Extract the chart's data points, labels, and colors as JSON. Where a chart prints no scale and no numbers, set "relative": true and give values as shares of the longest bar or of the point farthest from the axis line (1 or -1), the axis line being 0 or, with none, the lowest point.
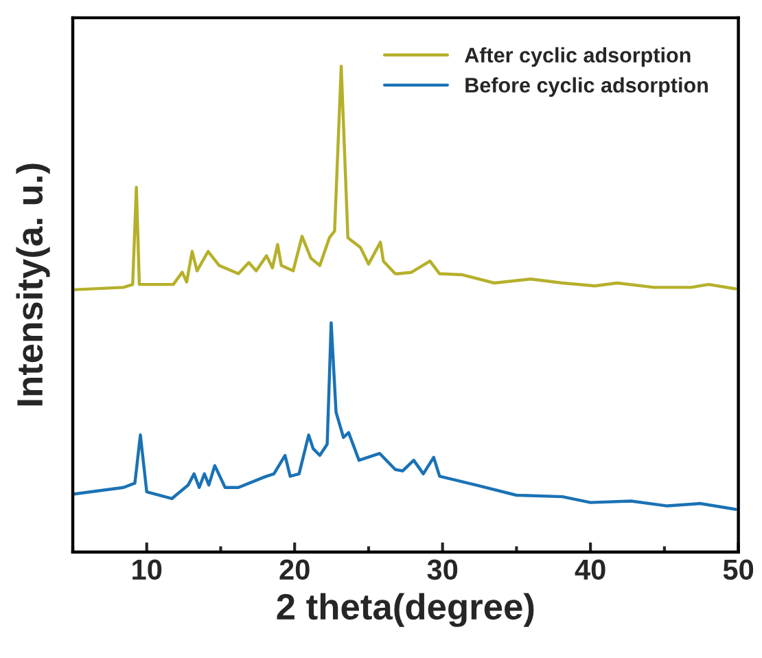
{
  "chart_data": {
    "type": "line",
    "relative": true,
    "xlabel": "2 theta(degree)",
    "ylabel": "Intensity(a. u.)",
    "xlim": [
      5,
      50
    ],
    "xticks": [
      10,
      20,
      30,
      40,
      50
    ],
    "legend": "top right",
    "grid": false,
    "line_style": "solid",
    "marker": "none",
    "tick_labels": "x",
    "series": [
      {
        "name": "After cyclic adsorption",
        "color": "#b5b02a",
        "x": [
          5,
          8.43,
          9.05,
          9.3,
          9.5,
          11.8,
          12.4,
          12.7,
          13.07,
          13.4,
          14.15,
          14.9,
          16.2,
          16.9,
          17.4,
          18.1,
          18.5,
          18.85,
          19.1,
          19.9,
          20.5,
          21.1,
          21.7,
          22.35,
          22.7,
          23.15,
          23.6,
          24.45,
          25.0,
          25.8,
          26.0,
          26.8,
          27.0,
          27.9,
          29.15,
          29.8,
          31.3,
          33.5,
          35.95,
          38.1,
          40.3,
          41.8,
          44.3,
          46.8,
          48.0,
          49.8
        ],
        "values": [
          0.54,
          0.545,
          0.551,
          0.751,
          0.551,
          0.551,
          0.576,
          0.556,
          0.619,
          0.579,
          0.619,
          0.59,
          0.573,
          0.596,
          0.579,
          0.61,
          0.585,
          0.633,
          0.59,
          0.579,
          0.65,
          0.605,
          0.59,
          0.647,
          0.661,
          1.0,
          0.647,
          0.627,
          0.593,
          0.638,
          0.599,
          0.573,
          0.573,
          0.576,
          0.599,
          0.573,
          0.571,
          0.554,
          0.562,
          0.554,
          0.548,
          0.554,
          0.545,
          0.545,
          0.551,
          0.542
        ]
      },
      {
        "name": "Before cyclic adsorption",
        "color": "#1a72b5",
        "x": [
          5,
          8.43,
          9.2,
          9.57,
          10.0,
          11.7,
          12.8,
          13.2,
          13.55,
          13.9,
          14.2,
          14.6,
          15.3,
          16.2,
          18.0,
          18.6,
          19.35,
          19.7,
          20.3,
          20.95,
          21.25,
          21.7,
          22.2,
          22.47,
          22.8,
          23.3,
          23.65,
          24.35,
          25.75,
          26.8,
          27.3,
          28.05,
          28.7,
          29.4,
          29.8,
          32.25,
          35.0,
          38.1,
          40.0,
          42.75,
          45.2,
          47.4,
          49.8
        ],
        "values": [
          0.119,
          0.133,
          0.142,
          0.241,
          0.124,
          0.11,
          0.138,
          0.161,
          0.133,
          0.161,
          0.138,
          0.178,
          0.133,
          0.133,
          0.155,
          0.161,
          0.199,
          0.156,
          0.161,
          0.241,
          0.213,
          0.199,
          0.222,
          0.472,
          0.288,
          0.236,
          0.246,
          0.189,
          0.203,
          0.17,
          0.167,
          0.189,
          0.161,
          0.195,
          0.156,
          0.138,
          0.117,
          0.114,
          0.102,
          0.105,
          0.095,
          0.1,
          0.088
        ]
      }
    ]
  }
}
